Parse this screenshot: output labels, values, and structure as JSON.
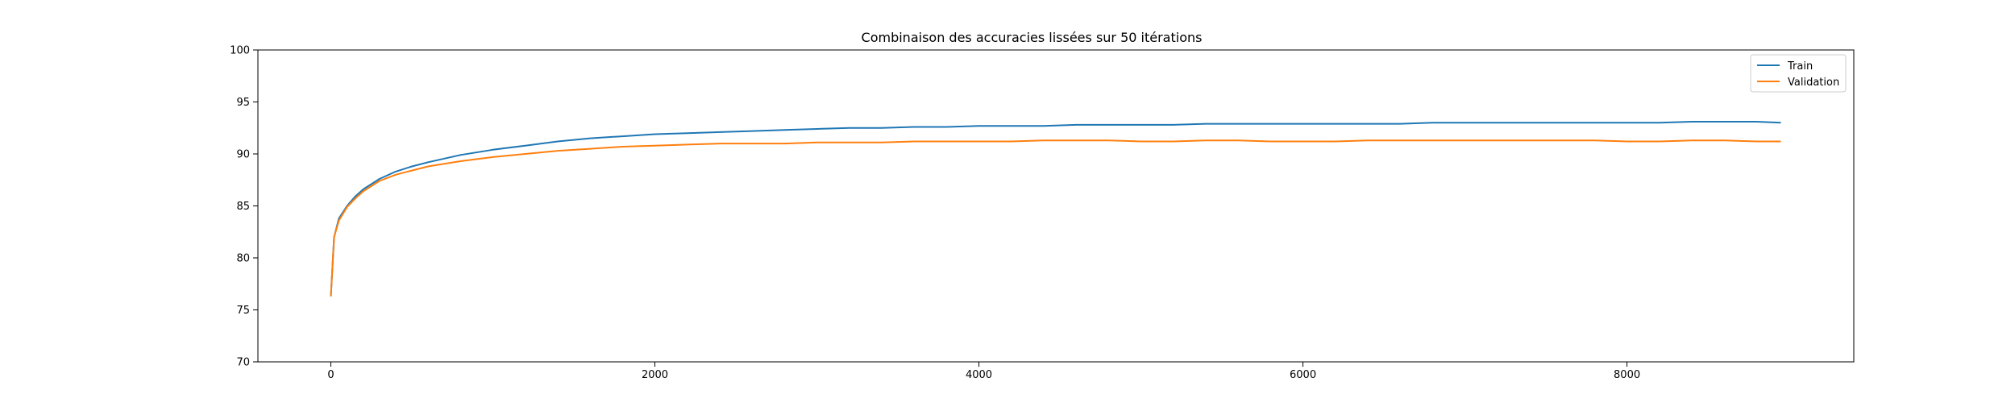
{
  "chart_data": {
    "type": "line",
    "title": "Combinaison des accuracies lissées sur 50 itérations",
    "xlabel": "",
    "ylabel": "",
    "xlim": [
      -450,
      9400
    ],
    "ylim": [
      70,
      100
    ],
    "xticks": [
      0,
      2000,
      4000,
      6000,
      8000
    ],
    "xtick_labels": [
      "0",
      "2000",
      "4000",
      "6000",
      "8000"
    ],
    "yticks": [
      70,
      75,
      80,
      85,
      90,
      95,
      100
    ],
    "ytick_labels": [
      "70",
      "75",
      "80",
      "85",
      "90",
      "95",
      "100"
    ],
    "grid": false,
    "legend_position": "top-right",
    "series": [
      {
        "name": "Train",
        "color": "#1f77b4",
        "x": [
          0,
          20,
          50,
          100,
          150,
          200,
          300,
          400,
          500,
          600,
          800,
          1000,
          1200,
          1400,
          1600,
          1800,
          2000,
          2200,
          2400,
          2600,
          2800,
          3000,
          3200,
          3400,
          3600,
          3800,
          4000,
          4200,
          4400,
          4600,
          4800,
          5000,
          5200,
          5400,
          5600,
          5800,
          6000,
          6200,
          6400,
          6600,
          6800,
          7000,
          7200,
          7400,
          7600,
          7800,
          8000,
          8200,
          8400,
          8600,
          8800,
          8950
        ],
        "y": [
          76.3,
          82.0,
          83.8,
          85.0,
          85.9,
          86.6,
          87.6,
          88.3,
          88.8,
          89.2,
          89.9,
          90.4,
          90.8,
          91.2,
          91.5,
          91.7,
          91.9,
          92.0,
          92.1,
          92.2,
          92.3,
          92.4,
          92.5,
          92.5,
          92.6,
          92.6,
          92.7,
          92.7,
          92.7,
          92.8,
          92.8,
          92.8,
          92.8,
          92.9,
          92.9,
          92.9,
          92.9,
          92.9,
          92.9,
          92.9,
          93.0,
          93.0,
          93.0,
          93.0,
          93.0,
          93.0,
          93.0,
          93.0,
          93.1,
          93.1,
          93.1,
          93.0
        ]
      },
      {
        "name": "Validation",
        "color": "#ff7f0e",
        "x": [
          0,
          20,
          50,
          100,
          150,
          200,
          300,
          400,
          500,
          600,
          800,
          1000,
          1200,
          1400,
          1600,
          1800,
          2000,
          2200,
          2400,
          2600,
          2800,
          3000,
          3200,
          3400,
          3600,
          3800,
          4000,
          4200,
          4400,
          4600,
          4800,
          5000,
          5200,
          5400,
          5600,
          5800,
          6000,
          6200,
          6400,
          6600,
          6800,
          7000,
          7200,
          7400,
          7600,
          7800,
          8000,
          8200,
          8400,
          8600,
          8800,
          8950
        ],
        "y": [
          76.3,
          82.0,
          83.6,
          84.9,
          85.7,
          86.4,
          87.4,
          88.0,
          88.4,
          88.8,
          89.3,
          89.7,
          90.0,
          90.3,
          90.5,
          90.7,
          90.8,
          90.9,
          91.0,
          91.0,
          91.0,
          91.1,
          91.1,
          91.1,
          91.2,
          91.2,
          91.2,
          91.2,
          91.3,
          91.3,
          91.3,
          91.2,
          91.2,
          91.3,
          91.3,
          91.2,
          91.2,
          91.2,
          91.3,
          91.3,
          91.3,
          91.3,
          91.3,
          91.3,
          91.3,
          91.3,
          91.2,
          91.2,
          91.3,
          91.3,
          91.2,
          91.2
        ]
      }
    ]
  }
}
